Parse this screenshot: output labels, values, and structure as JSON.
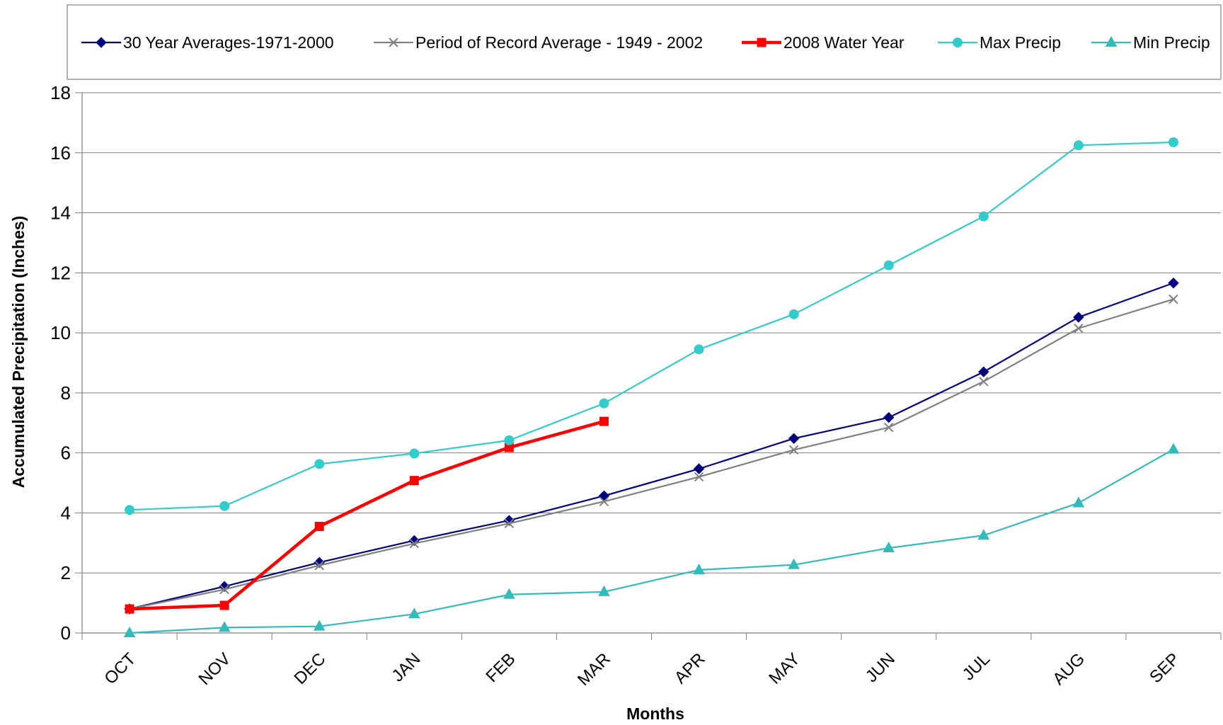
{
  "chart_data": {
    "type": "line",
    "title": "",
    "xlabel": "Months",
    "ylabel": "Accumulated Precipitation (Inches)",
    "ylim": [
      0,
      18
    ],
    "yticks": [
      0,
      2,
      4,
      6,
      8,
      10,
      12,
      14,
      16,
      18
    ],
    "grid": true,
    "legend_position": "top",
    "categories": [
      "OCT",
      "NOV",
      "DEC",
      "JAN",
      "FEB",
      "MAR",
      "APR",
      "MAY",
      "JUN",
      "JUL",
      "AUG",
      "SEP"
    ],
    "series": [
      {
        "name": "30 Year Averages-1971-2000",
        "color": "#000080",
        "marker": "diamond",
        "values": [
          0.8,
          1.55,
          2.35,
          3.08,
          3.75,
          4.57,
          5.47,
          6.48,
          7.18,
          8.7,
          10.52,
          11.66
        ]
      },
      {
        "name": "Period of Record Average - 1949 - 2002",
        "color": "#808080",
        "marker": "x",
        "values": [
          0.8,
          1.45,
          2.25,
          2.98,
          3.65,
          4.38,
          5.2,
          6.1,
          6.85,
          8.38,
          10.15,
          11.12
        ]
      },
      {
        "name": "2008 Water Year",
        "color": "#ff0000",
        "marker": "square",
        "values": [
          0.8,
          0.92,
          3.55,
          5.08,
          6.18,
          7.05,
          null,
          null,
          null,
          null,
          null,
          null
        ]
      },
      {
        "name": "Max Precip",
        "color": "#33cccc",
        "marker": "circle",
        "values": [
          4.1,
          4.23,
          5.63,
          5.98,
          6.42,
          7.65,
          9.45,
          10.62,
          12.25,
          13.88,
          16.25,
          16.35
        ]
      },
      {
        "name": "Min Precip",
        "color": "#33bbbb",
        "marker": "triangle",
        "values": [
          0.0,
          0.18,
          0.22,
          0.63,
          1.28,
          1.37,
          2.1,
          2.27,
          2.83,
          3.25,
          4.33,
          6.12
        ]
      }
    ]
  }
}
